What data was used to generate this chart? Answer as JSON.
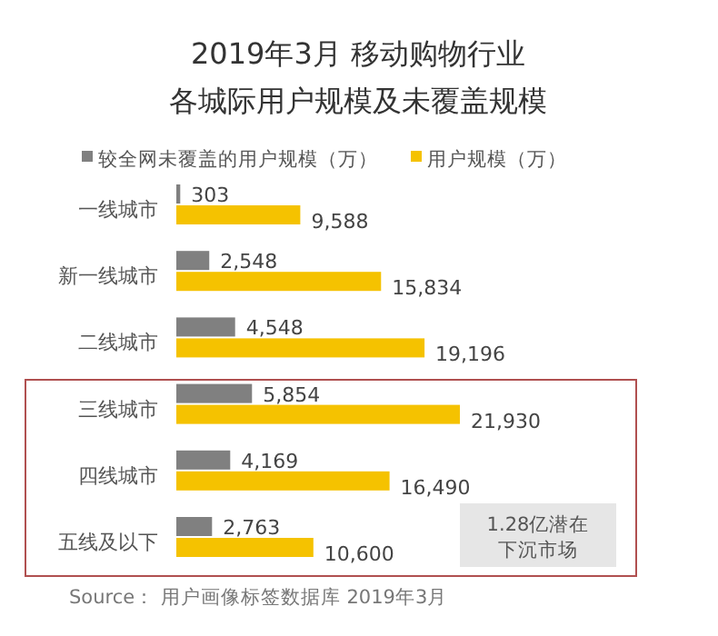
{
  "chart_data": {
    "type": "bar",
    "orientation": "horizontal",
    "title": "2019年3月 移动购物行业",
    "subtitle": "各城际用户规模及未覆盖规模",
    "categories": [
      "一线城市",
      "新一线城市",
      "二线城市",
      "三线城市",
      "四线城市",
      "五线及以下"
    ],
    "series": [
      {
        "name": "较全网未覆盖的用户规模（万）",
        "color": "#808080",
        "values": [
          303,
          2548,
          4548,
          5854,
          4169,
          2763
        ],
        "value_labels": [
          "303",
          "2,548",
          "4,548",
          "5,854",
          "4,169",
          "2,763"
        ]
      },
      {
        "name": "用户规模（万）",
        "color": "#f5c200",
        "values": [
          9588,
          15834,
          19196,
          21930,
          16490,
          10600
        ],
        "value_labels": [
          "9,588",
          "15,834",
          "19,196",
          "21,930",
          "16,490",
          "10,600"
        ]
      }
    ],
    "legend": "top",
    "annotations": [
      "1.28亿潜在下沉市场",
      "Source： 用户画像标签数据库 2019年3月"
    ]
  }
}
